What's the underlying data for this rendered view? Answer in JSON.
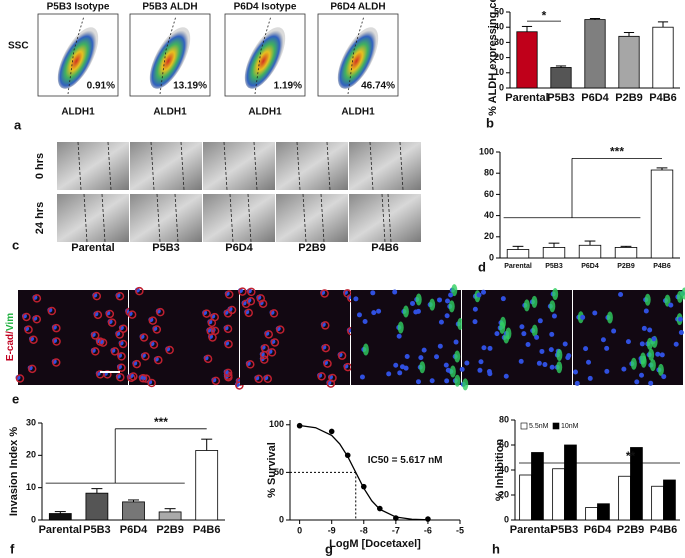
{
  "panel_letters": [
    "a",
    "b",
    "c",
    "d",
    "e",
    "f",
    "g",
    "h"
  ],
  "flow": {
    "y_label": "SSC",
    "x_label": "ALDH1",
    "plots": [
      {
        "title": "P5B3 Isotype",
        "percent": "0.91%"
      },
      {
        "title": "P5B3 ALDH",
        "percent": "13.19%"
      },
      {
        "title": "P6D4 Isotype",
        "percent": "1.19%"
      },
      {
        "title": "P6D4 ALDH",
        "percent": "46.74%"
      }
    ]
  },
  "scratch": {
    "rows": [
      "0 hrs",
      "24 hrs"
    ],
    "columns": [
      "Parental",
      "P5B3",
      "P6D4",
      "P2B9",
      "P4B6"
    ]
  },
  "immunofluorescence": {
    "label_parts": [
      "E-cad/",
      "Vim"
    ]
  },
  "chart_data": [
    {
      "type": "bar",
      "ylabel": "% ALDH expressing cells",
      "categories": [
        "Parental",
        "P5B3",
        "P6D4",
        "P2B9",
        "P4B6"
      ],
      "values": [
        37,
        13.5,
        45,
        34,
        40
      ],
      "errors": [
        3.5,
        1,
        0.7,
        2.5,
        3.5
      ],
      "colors": [
        "#c0001a",
        "#555555",
        "#7f7f7f",
        "#a6a6a6",
        "#ffffff"
      ],
      "ylim": [
        0,
        50
      ],
      "yticks": [
        0,
        10,
        20,
        30,
        40,
        50
      ],
      "annotation": "*"
    },
    {
      "type": "bar",
      "categories": [
        "Parental",
        "P5B3",
        "P6D4",
        "P2B9",
        "P4B6"
      ],
      "values": [
        8,
        10,
        12,
        10,
        83
      ],
      "errors": [
        3,
        4,
        4,
        1,
        2
      ],
      "colors": [
        "#ffffff",
        "#ffffff",
        "#ffffff",
        "#ffffff",
        "#ffffff"
      ],
      "ylim": [
        0,
        100
      ],
      "yticks": [
        0,
        20,
        40,
        60,
        80,
        100
      ],
      "annotation": "***"
    },
    {
      "type": "bar",
      "ylabel": "Invasion Index %",
      "categories": [
        "Parental",
        "P5B3",
        "P6D4",
        "P2B9",
        "P4B6"
      ],
      "values": [
        2,
        8.3,
        5.6,
        2.5,
        21.5
      ],
      "errors": [
        0.6,
        1.4,
        0.6,
        1,
        3.5
      ],
      "colors": [
        "#111111",
        "#555555",
        "#777777",
        "#aaaaaa",
        "#ffffff"
      ],
      "ylim": [
        0,
        30
      ],
      "yticks": [
        0,
        10,
        20,
        30
      ],
      "annotation": "***"
    },
    {
      "type": "scatter",
      "xlabel": "LogM [Docetaxel]",
      "ylabel": "% Survival",
      "x": [
        -10,
        -9,
        -8.5,
        -8,
        -7.5,
        -7,
        -6
      ],
      "values": [
        99,
        93,
        68,
        35,
        12,
        2,
        1
      ],
      "fit": {
        "x": [
          -10,
          -9.5,
          -9,
          -8.75,
          -8.5,
          -8.25,
          -8,
          -7.75,
          -7.5,
          -7,
          -6.5,
          -6
        ],
        "y": [
          99.2,
          96.9,
          88.8,
          79.9,
          66.6,
          50,
          33.4,
          20.1,
          11.2,
          3.1,
          0.8,
          0.2
        ]
      },
      "ic50": [
        -8.25,
        50
      ],
      "xlim": [
        -10.3,
        -5
      ],
      "xticks": [
        {
          "value": -10,
          "label": "0"
        },
        -9,
        -8,
        -7,
        -6,
        -5
      ],
      "ylim": [
        0,
        105
      ],
      "yticks": [
        0,
        50,
        100
      ],
      "annotation": "IC50 = 5.617 nM"
    },
    {
      "type": "bar",
      "ylabel": "% Inhibition",
      "categories": [
        "Parental",
        "P5B3",
        "P6D4",
        "P2B9",
        "P4B6"
      ],
      "series": [
        {
          "name": "5.5nM",
          "color": "#ffffff",
          "values": [
            36,
            41,
            10,
            35,
            27
          ]
        },
        {
          "name": "10nM",
          "color": "#000000",
          "values": [
            54,
            60,
            13,
            58,
            32
          ]
        }
      ],
      "ylim": [
        0,
        80
      ],
      "yticks": [
        0,
        20,
        40,
        60,
        80
      ],
      "annotation": "**"
    }
  ]
}
